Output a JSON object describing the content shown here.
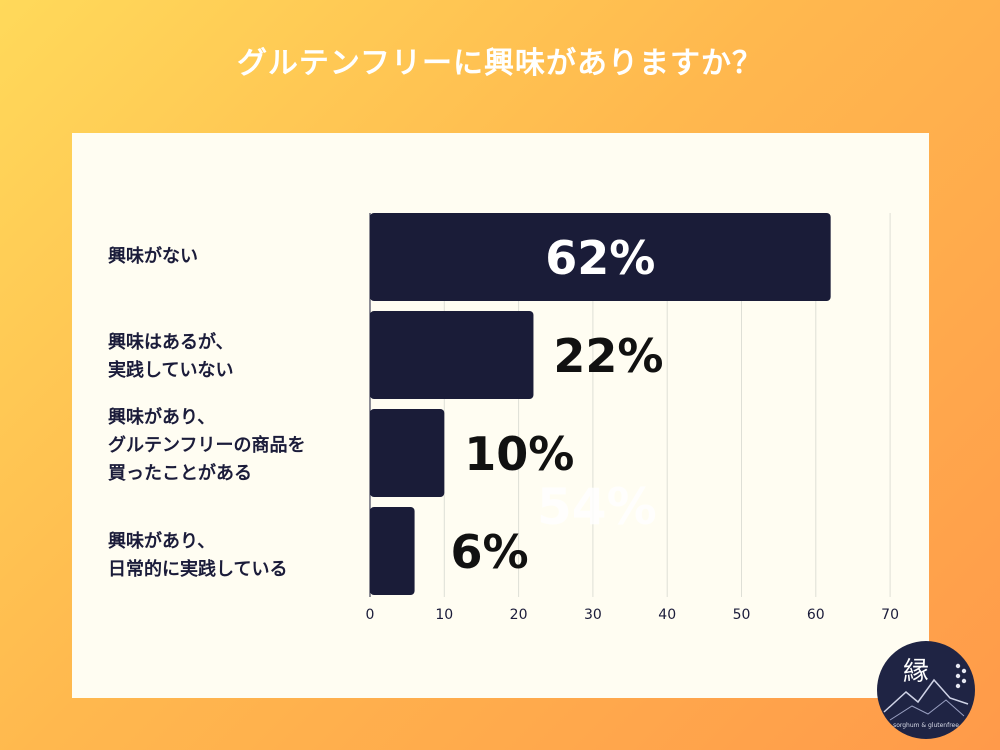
{
  "title": "グルテンフリーに興味がありますか？",
  "chart_data": {
    "type": "bar",
    "orientation": "horizontal",
    "categories": [
      "興味がない",
      "興味はあるが、\n実践していない",
      "興味があり、\nグルテンフリーの商品を\n買ったことがある",
      "興味があり、\n日常的に実践している"
    ],
    "values": [
      62,
      22,
      10,
      6
    ],
    "value_labels": [
      "62%",
      "22%",
      "10%",
      "6%"
    ],
    "xlim": [
      0,
      70
    ],
    "xticks": [
      "0",
      "10",
      "20",
      "30",
      "40",
      "50",
      "60",
      "70"
    ],
    "grid": true,
    "bar_color": "#1a1c38",
    "ghost_label": "54%"
  },
  "logo": {
    "text": "縁",
    "caption": "sorghum & glutenfree",
    "color": "#1f2444"
  }
}
